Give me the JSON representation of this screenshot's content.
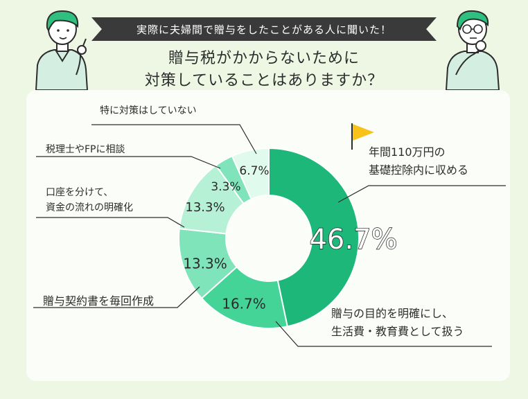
{
  "banner": {
    "text": "実際に夫婦間で贈与をしたことがある人に聞いた！"
  },
  "title": {
    "line1": "贈与税がかからないために",
    "line2": "対策していることはありますか？"
  },
  "icons": {
    "left_person": "person-pointing-icon",
    "right_person": "person-thinking-icon",
    "flag": "flag-icon"
  },
  "colors": {
    "accent": "#1db77a",
    "flag": "#f7c31a",
    "banner": "#3a3a3a",
    "background": "#eef7e4"
  },
  "chart_data": {
    "type": "pie",
    "donut": true,
    "unit": "%",
    "slices": [
      {
        "label": "年間110万円の\n基礎控除内に収める",
        "value": 46.7,
        "value_label": "46.7%",
        "color": "#1db77a",
        "label_color": "#ffffff"
      },
      {
        "label": "贈与の目的を明確にし、\n生活費・教育費として扱う",
        "value": 16.7,
        "value_label": "16.7%",
        "color": "#45d497",
        "label_color": "#2a2a2a"
      },
      {
        "label": "贈与契約書を毎回作成",
        "value": 13.3,
        "value_label": "13.3%",
        "color": "#7fe4ba",
        "label_color": "#2a2a2a"
      },
      {
        "label": "口座を分けて、\n資金の流れの明確化",
        "value": 13.3,
        "value_label": "13.3%",
        "color": "#b6f1d6",
        "label_color": "#2a2a2a"
      },
      {
        "label": "税理士やFPに相談",
        "value": 3.3,
        "value_label": "3.3%",
        "color": "#7fe4ba",
        "label_color": "#2a2a2a"
      },
      {
        "label": "特に対策はしていない",
        "value": 6.7,
        "value_label": "6.7%",
        "color": "#e0fbee",
        "label_color": "#2a2a2a"
      }
    ]
  }
}
